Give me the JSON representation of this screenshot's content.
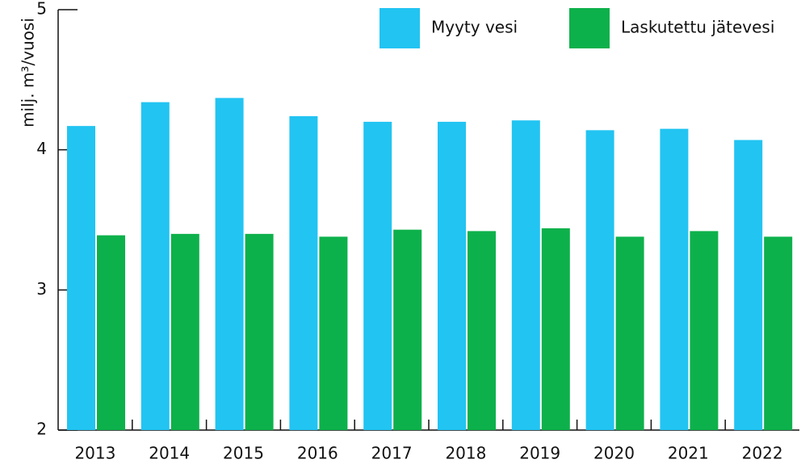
{
  "chart_data": {
    "type": "bar",
    "ylabel": "milj. m³/vuosi",
    "categories": [
      "2013",
      "2014",
      "2015",
      "2016",
      "2017",
      "2018",
      "2019",
      "2020",
      "2021",
      "2022"
    ],
    "series": [
      {
        "name": "Myyty vesi",
        "color": "#22c4f2",
        "values": [
          4.17,
          4.34,
          4.37,
          4.24,
          4.2,
          4.2,
          4.21,
          4.14,
          4.15,
          4.07
        ]
      },
      {
        "name": "Laskutettu jätevesi",
        "color": "#0db14b",
        "values": [
          3.39,
          3.4,
          3.4,
          3.38,
          3.43,
          3.42,
          3.44,
          3.38,
          3.42,
          3.38
        ]
      }
    ],
    "ylim": [
      2,
      5
    ],
    "yticks": [
      2,
      3,
      4,
      5
    ],
    "legend": "top-right"
  }
}
